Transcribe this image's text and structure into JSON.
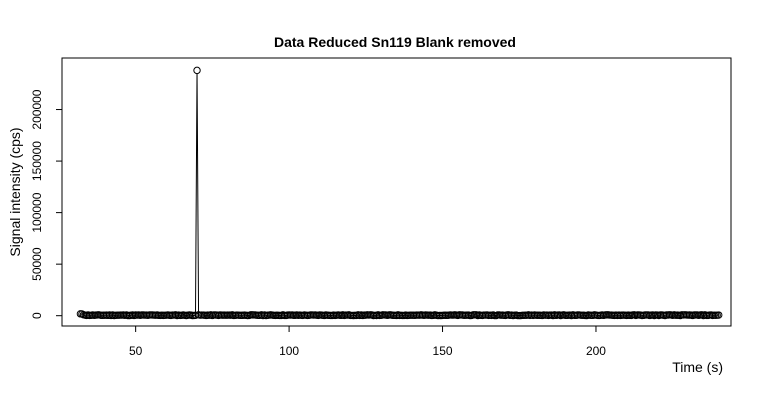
{
  "chart_data": {
    "type": "scatter",
    "title": "Data Reduced Sn119 Blank removed",
    "xlabel": "Time (s)",
    "ylabel": "Signal intensity (cps)",
    "xlim": [
      26,
      244
    ],
    "ylim": [
      -10000,
      250000
    ],
    "xticks": [
      50,
      100,
      150,
      200
    ],
    "yticks": [
      0,
      50000,
      100000,
      150000,
      200000
    ],
    "grid": false,
    "legend": "none",
    "marker": "open-circle",
    "series": [
      {
        "x_start": 32,
        "x_end": 240,
        "x_step": 0.5,
        "baseline": 500,
        "spike": {
          "x": 70,
          "y": 238000
        }
      }
    ]
  }
}
